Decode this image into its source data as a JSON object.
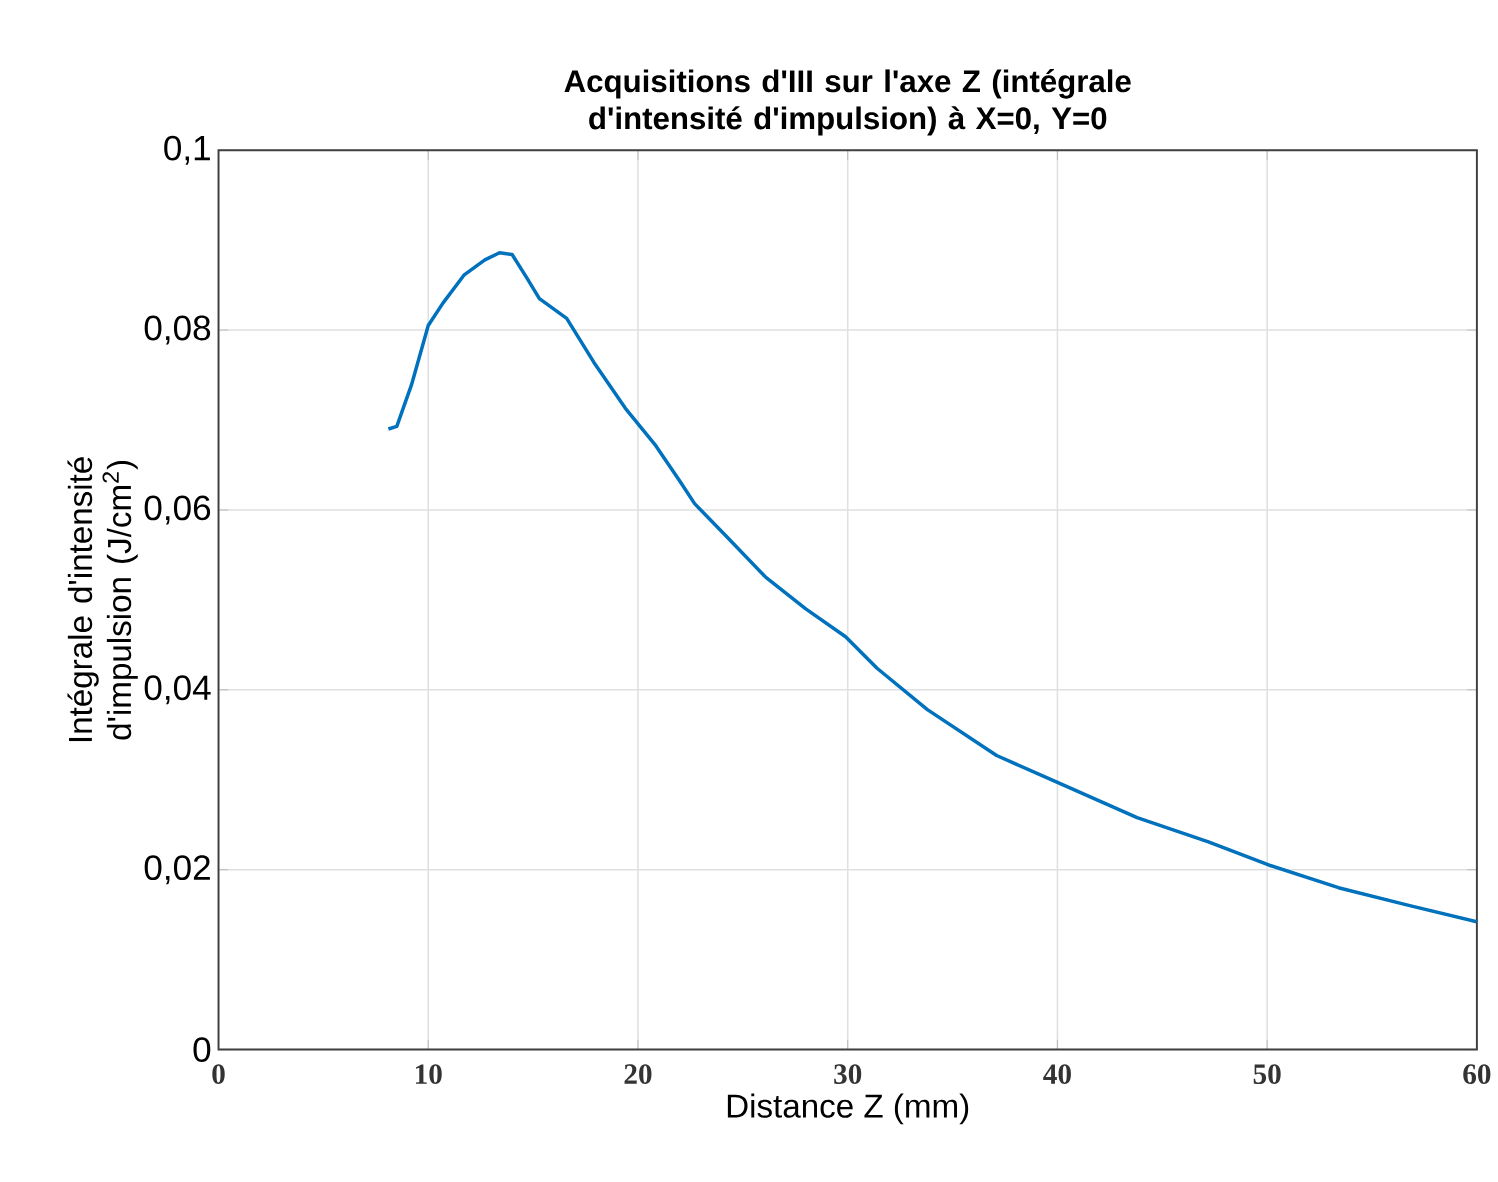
{
  "chart_data": {
    "type": "line",
    "title": "Acquisitions d'III sur l'axe Z (intégrale d'intensité d'impulsion) à X=0, Y=0",
    "xlabel": "Distance Z (mm)",
    "ylabel": "Intégrale d'intensité d'impulsion (J/cm$^{2}$)",
    "xlim": [
      0,
      60
    ],
    "xticks": [
      0,
      10,
      20,
      30,
      40,
      50,
      60
    ],
    "ylim": [
      0,
      0.1
    ],
    "yticks": [
      {
        "value": 0,
        "label": "0"
      },
      {
        "value": 0.02,
        "label": "0,02"
      },
      {
        "value": 0.04,
        "label": "0,04"
      },
      {
        "value": 0.06,
        "label": "0,06"
      },
      {
        "value": 0.08,
        "label": "0,08"
      },
      {
        "value": 0.1,
        "label": "0,1"
      }
    ],
    "grid": true,
    "marker": "none",
    "line_style": "solid",
    "series": [
      {
        "color": "#0072bd",
        "x": [
          8.1,
          8.5,
          9.2,
          10.0,
          10.7,
          11.7,
          12.7,
          13.4,
          14.0,
          14.7,
          15.3,
          16.6,
          17.9,
          19.4,
          20.8,
          22.0,
          22.7,
          24.2,
          26.1,
          28.0,
          29.9,
          31.4,
          33.8,
          37.1,
          40.0,
          43.8,
          47.2,
          50.1,
          53.4,
          56.8,
          60.0
        ],
        "values": [
          0.069,
          0.0693,
          0.0739,
          0.0805,
          0.083,
          0.0861,
          0.0878,
          0.0886,
          0.0884,
          0.0858,
          0.0835,
          0.0813,
          0.0764,
          0.0713,
          0.0673,
          0.0632,
          0.0607,
          0.0571,
          0.0525,
          0.049,
          0.0459,
          0.0424,
          0.0378,
          0.0327,
          0.0297,
          0.0258,
          0.0231,
          0.0205,
          0.018,
          0.016,
          0.0142
        ]
      }
    ]
  }
}
